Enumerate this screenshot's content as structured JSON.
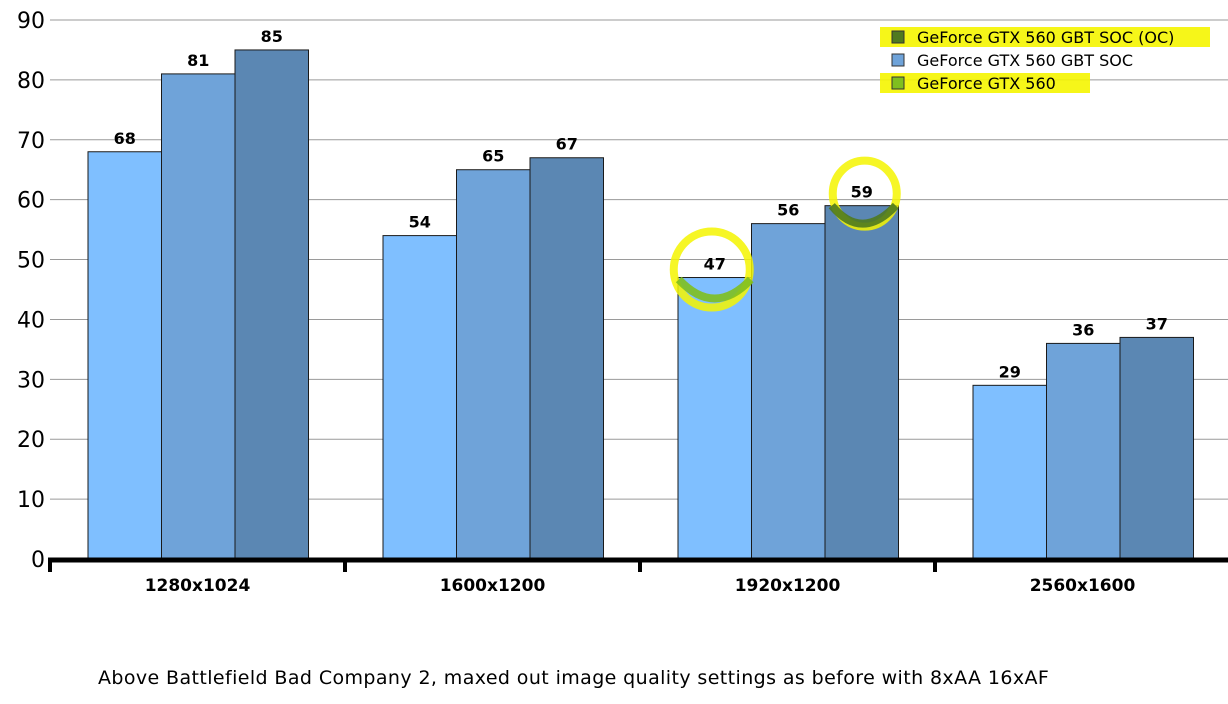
{
  "chart_data": {
    "type": "bar",
    "categories": [
      "1280x1024",
      "1600x1200",
      "1920x1200",
      "2560x1600"
    ],
    "series": [
      {
        "name": "GeForce GTX 560",
        "values": [
          68,
          54,
          47,
          29
        ],
        "color": "#7fbfff"
      },
      {
        "name": "GeForce GTX 560 GBT SOC",
        "values": [
          81,
          65,
          56,
          36
        ],
        "color": "#6fa3d9"
      },
      {
        "name": "GeForce GTX 560 GBT SOC (OC)",
        "values": [
          85,
          67,
          59,
          37
        ],
        "color": "#5b87b3"
      }
    ],
    "data_labels": [
      [
        "68",
        "54",
        "47",
        "29"
      ],
      [
        "81",
        "65",
        "56",
        "36"
      ],
      [
        "85",
        "67",
        "59",
        "37"
      ]
    ],
    "ylim": [
      0,
      90
    ],
    "yticks": [
      0,
      10,
      20,
      30,
      40,
      50,
      60,
      70,
      80,
      90
    ],
    "grid": true,
    "legend_position": "top-right",
    "legend": [
      {
        "label": "GeForce GTX 560 GBT SOC (OC)",
        "swatch": "#4f7a1f",
        "highlight": true
      },
      {
        "label": "GeForce GTX 560 GBT SOC",
        "swatch": "#6fa3d9",
        "highlight": false
      },
      {
        "label": "GeForce GTX 560",
        "swatch": "#7fbf1f",
        "highlight": true
      }
    ],
    "annotations": [
      "yellow-circle-47",
      "yellow-circle-59"
    ],
    "title": "",
    "xlabel": "",
    "ylabel": ""
  },
  "caption": "Above Battlefield Bad Company 2, maxed out image quality settings as before with 8xAA 16xAF",
  "colors": {
    "highlight": "#f5f500",
    "grid": "#9a9a9a",
    "axis": "#000000"
  }
}
